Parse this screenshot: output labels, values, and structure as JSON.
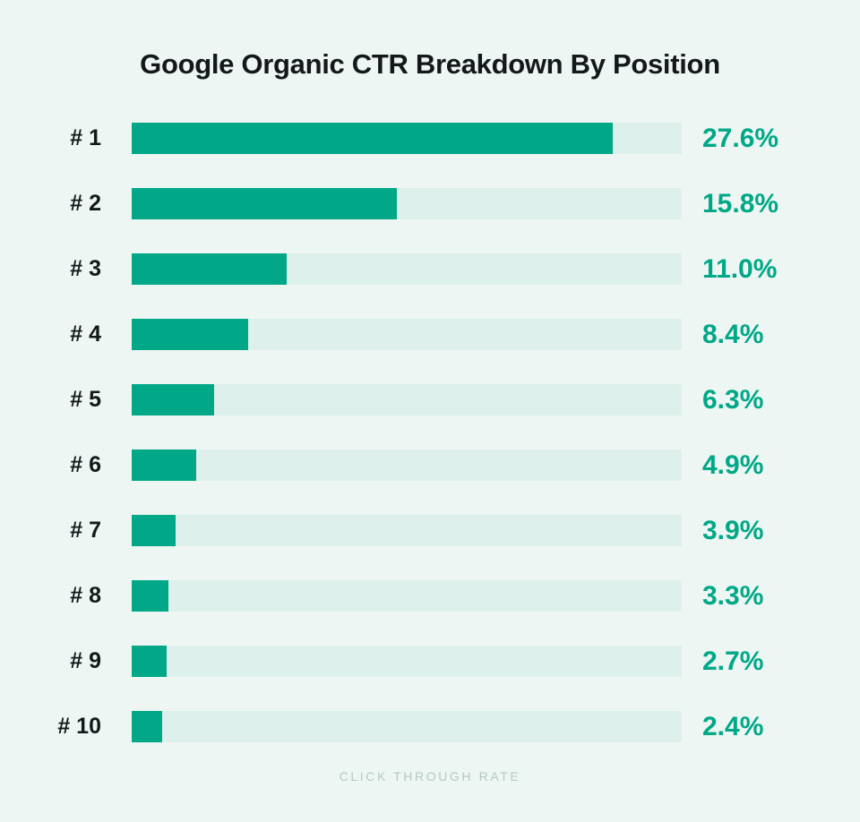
{
  "chart": {
    "title": "Google Organic CTR Breakdown By Position",
    "footer": "CLICK THROUGH RATE"
  },
  "chart_data": {
    "type": "bar",
    "orientation": "horizontal",
    "title": "Google Organic CTR Breakdown By Position",
    "xlabel": "CLICK THROUGH RATE",
    "ylabel": "",
    "categories": [
      "# 1",
      "# 2",
      "# 3",
      "# 4",
      "# 5",
      "# 6",
      "# 7",
      "# 8",
      "# 9",
      "# 10"
    ],
    "values": [
      27.6,
      15.8,
      11.0,
      8.4,
      6.3,
      4.9,
      3.9,
      3.3,
      2.7,
      2.4
    ],
    "display_values": [
      "27.6%",
      "15.8%",
      "11.0%",
      "8.4%",
      "6.3%",
      "4.9%",
      "3.9%",
      "3.3%",
      "2.7%",
      "2.4%"
    ],
    "bar_fill_pct": [
      87.4,
      48.2,
      28.1,
      21.2,
      15.0,
      11.7,
      8.0,
      6.7,
      6.3,
      5.5
    ],
    "xlim": [
      0,
      31.6
    ],
    "grid": false,
    "legend": "none",
    "value_label_position": "right-of-track",
    "colors": {
      "background": "#edf6f3",
      "bar_fill": "#00a887",
      "bar_track": "#def0eb",
      "value_text": "#00a887",
      "label_text": "#15181b",
      "title_text": "#15181b",
      "footer_text": "#b4c8c4"
    }
  }
}
